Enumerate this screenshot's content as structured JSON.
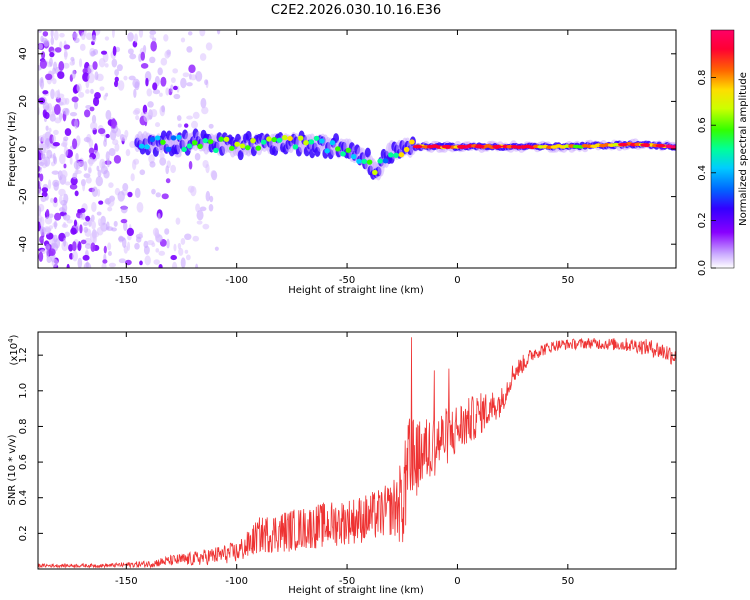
{
  "figure_title": "C2E2.2026.030.10.16.E36",
  "chart_data": [
    {
      "type": "heatmap",
      "title": "C2E2.2026.030.10.16.E36",
      "xlabel": "Height of straight line (km)",
      "ylabel": "Frequency (Hz)",
      "xlim": [
        -190,
        99
      ],
      "ylim": [
        -50,
        50
      ],
      "x_ticks": [
        -150,
        -100,
        -50,
        0,
        50
      ],
      "x_tick_labels": [
        "-150",
        "-100",
        "-50",
        "0",
        "50"
      ],
      "y_ticks": [
        -40,
        -20,
        0,
        20,
        40
      ],
      "y_tick_labels": [
        "-40",
        "-20",
        "0",
        "20",
        "40"
      ],
      "colorbar": {
        "label": "Normalized spectral amplitude",
        "range": [
          0.0,
          1.0
        ],
        "ticks": [
          0.0,
          0.2,
          0.4,
          0.6,
          0.8
        ],
        "tick_labels": [
          "0.0",
          "0.2",
          "0.4",
          "0.6",
          "0.8"
        ],
        "colormap": [
          "#ffffff",
          "#c9a8ff",
          "#8800ff",
          "#3300ff",
          "#0066ff",
          "#00ccff",
          "#00ff99",
          "#33ff00",
          "#ccff00",
          "#ffdd00",
          "#ff6600",
          "#ff0033",
          "#ff0066"
        ]
      },
      "noise_region_x": [
        -190,
        -120
      ],
      "ridge": {
        "x": [
          -145,
          -130,
          -120,
          -110,
          -100,
          -90,
          -80,
          -70,
          -60,
          -50,
          -45,
          -40,
          -36,
          -33,
          -30,
          -25,
          -20,
          -10,
          0,
          20,
          50,
          80,
          99
        ],
        "frequency": [
          3,
          2,
          3,
          2,
          1,
          2,
          3,
          2,
          2,
          0,
          -2,
          -6,
          -10,
          -4,
          -1,
          0,
          1,
          1,
          1,
          1,
          1,
          2,
          1
        ],
        "amplitude": [
          0.35,
          0.45,
          0.5,
          0.55,
          0.6,
          0.55,
          0.6,
          0.6,
          0.55,
          0.55,
          0.5,
          0.6,
          0.5,
          0.45,
          0.5,
          0.6,
          0.75,
          0.85,
          0.9,
          0.85,
          0.7,
          0.8,
          0.85
        ]
      }
    },
    {
      "type": "line",
      "xlabel": "Height of straight line (km)",
      "ylabel": "SNR (10 * v/v)",
      "y_multiplier": "(x10",
      "y_multiplier_exp": "4",
      "y_multiplier_close": ")",
      "xlim": [
        -190,
        99
      ],
      "ylim": [
        0,
        1.33
      ],
      "x_ticks": [
        -150,
        -100,
        -50,
        0,
        50
      ],
      "x_tick_labels": [
        "-150",
        "-100",
        "-50",
        "0",
        "50"
      ],
      "y_ticks": [
        0.2,
        0.4,
        0.6,
        0.8,
        1.0,
        1.2
      ],
      "y_tick_labels": [
        "0.2",
        "0.4",
        "0.6",
        "0.8",
        "1.0",
        "1.2"
      ],
      "series": [
        {
          "name": "SNR",
          "color": "#ee3333",
          "x": [
            -190,
            -160,
            -140,
            -130,
            -120,
            -110,
            -100,
            -95,
            -90,
            -80,
            -70,
            -60,
            -50,
            -40,
            -30,
            -25,
            -22,
            -18,
            -10,
            0,
            10,
            20,
            25,
            35,
            45,
            60,
            80,
            90,
            99
          ],
          "mean": [
            0.02,
            0.02,
            0.03,
            0.05,
            0.06,
            0.08,
            0.1,
            0.14,
            0.2,
            0.22,
            0.24,
            0.26,
            0.28,
            0.3,
            0.35,
            0.4,
            0.55,
            0.65,
            0.72,
            0.8,
            0.88,
            0.95,
            1.1,
            1.22,
            1.26,
            1.27,
            1.26,
            1.24,
            1.2
          ],
          "spread": [
            0.01,
            0.01,
            0.02,
            0.03,
            0.04,
            0.05,
            0.06,
            0.08,
            0.1,
            0.12,
            0.12,
            0.13,
            0.13,
            0.14,
            0.15,
            0.25,
            0.35,
            0.2,
            0.18,
            0.15,
            0.12,
            0.08,
            0.06,
            0.04,
            0.03,
            0.03,
            0.04,
            0.05,
            0.06
          ]
        }
      ]
    }
  ]
}
